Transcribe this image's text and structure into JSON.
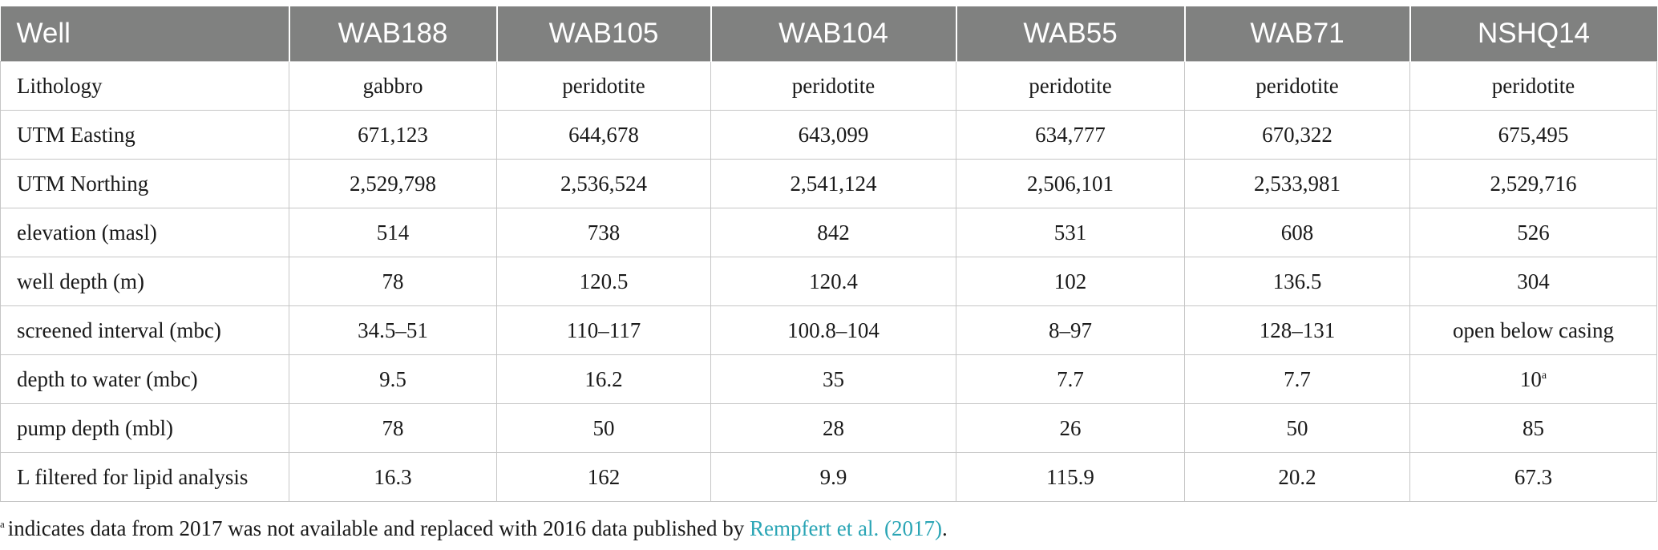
{
  "table": {
    "headers": [
      "Well",
      "WAB188",
      "WAB105",
      "WAB104",
      "WAB55",
      "WAB71",
      "NSHQ14"
    ],
    "rows": [
      {
        "label": "Lithology",
        "cells": [
          "gabbro",
          "peridotite",
          "peridotite",
          "peridotite",
          "peridotite",
          "peridotite"
        ]
      },
      {
        "label": "UTM Easting",
        "cells": [
          "671,123",
          "644,678",
          "643,099",
          "634,777",
          "670,322",
          "675,495"
        ]
      },
      {
        "label": "UTM Northing",
        "cells": [
          "2,529,798",
          "2,536,524",
          "2,541,124",
          "2,506,101",
          "2,533,981",
          "2,529,716"
        ]
      },
      {
        "label": "elevation (masl)",
        "cells": [
          "514",
          "738",
          "842",
          "531",
          "608",
          "526"
        ]
      },
      {
        "label": "well depth (m)",
        "cells": [
          "78",
          "120.5",
          "120.4",
          "102",
          "136.5",
          "304"
        ]
      },
      {
        "label": "screened interval (mbc)",
        "cells": [
          "34.5–51",
          "110–117",
          "100.8–104",
          "8–97",
          "128–131",
          "open below casing"
        ]
      },
      {
        "label": "depth to water (mbc)",
        "cells": [
          "9.5",
          "16.2",
          "35",
          "7.7",
          "7.7",
          "10"
        ]
      },
      {
        "label": "pump depth (mbl)",
        "cells": [
          "78",
          "50",
          "28",
          "26",
          "50",
          "85"
        ]
      },
      {
        "label": "L filtered for lipid analysis",
        "cells": [
          "16.3",
          "162",
          "9.9",
          "115.9",
          "20.2",
          "67.3"
        ]
      }
    ],
    "superscript_mark": "a"
  },
  "footnote": {
    "mark": "a",
    "text": "indicates data from 2017 was not available and replaced with 2016 data published by",
    "link_text": "Rempfert et al. (2017)",
    "end": "."
  },
  "colors": {
    "header_bg": "#808180",
    "header_text": "#ffffff",
    "grid": "#c6c6c6",
    "link": "#2aa5b5"
  }
}
